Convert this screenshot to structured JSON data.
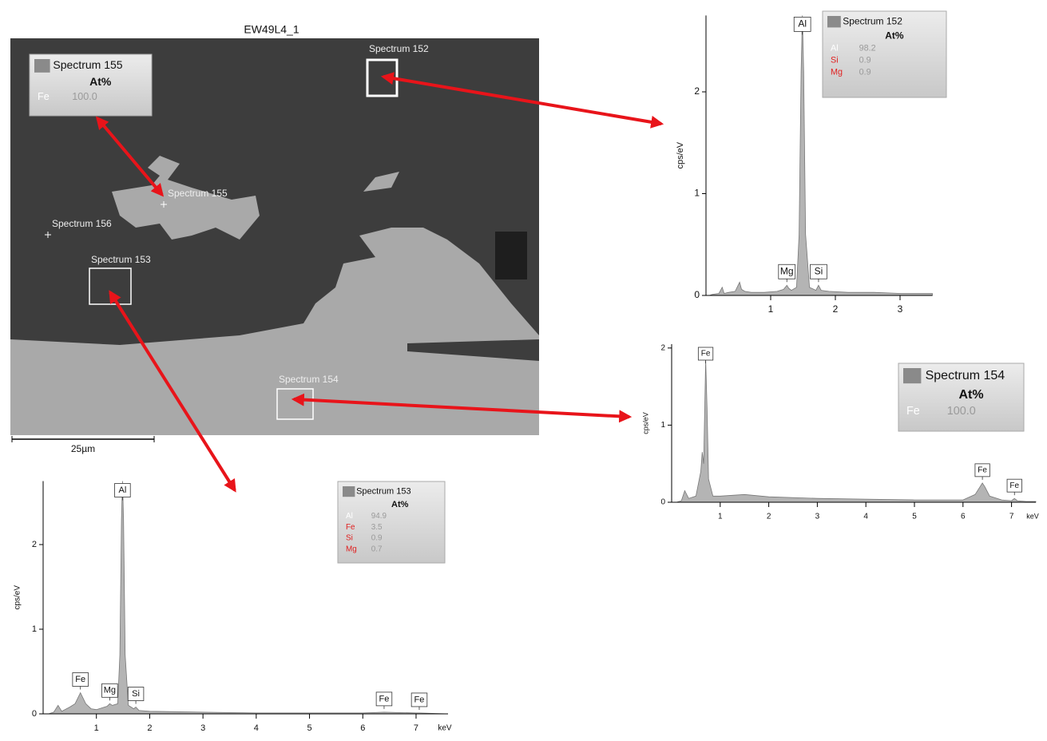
{
  "image": {
    "title": "EW49L4_1",
    "scale_bar": "25µm",
    "markers": [
      "Spectrum 152",
      "Spectrum 155",
      "Spectrum 156",
      "Spectrum 153",
      "Spectrum 154"
    ],
    "overlay": {
      "name": "Spectrum 155",
      "composition": {
        "header": "At%",
        "elements": [
          "Fe"
        ],
        "element_colors": [
          "#ffffff"
        ],
        "values": [
          100
        ],
        "value_labels": [
          "100.0"
        ]
      }
    }
  },
  "chart_data": [
    {
      "type": "area",
      "ylabel": "cps/eV",
      "x": [
        0.05,
        0.1,
        0.2,
        0.25,
        0.28,
        0.35,
        0.45,
        0.52,
        0.55,
        0.6,
        0.7,
        0.9,
        1.1,
        1.2,
        1.25,
        1.28,
        1.32,
        1.4,
        1.44,
        1.47,
        1.49,
        1.51,
        1.54,
        1.6,
        1.7,
        1.74,
        1.78,
        1.9,
        2.2,
        2.6,
        3.0,
        3.5
      ],
      "series": [
        {
          "name": "Spectrum 152",
          "color": "#b4b4b4",
          "values": [
            0,
            0.01,
            0.02,
            0.08,
            0.02,
            0.03,
            0.04,
            0.13,
            0.06,
            0.04,
            0.03,
            0.03,
            0.04,
            0.06,
            0.1,
            0.07,
            0.05,
            0.08,
            0.6,
            2.2,
            2.75,
            2.2,
            0.6,
            0.08,
            0.05,
            0.1,
            0.05,
            0.04,
            0.03,
            0.03,
            0.02,
            0.02
          ]
        }
      ],
      "xlim": [
        0,
        3.5
      ],
      "ylim": [
        0,
        2.75
      ],
      "xticks": [
        1,
        2,
        3
      ],
      "yticks": [
        0,
        1,
        2
      ],
      "peak_labels": [
        {
          "text": "Al",
          "x": 1.49
        },
        {
          "text": "Mg",
          "x": 1.25
        },
        {
          "text": "Si",
          "x": 1.74
        }
      ],
      "composition": {
        "header": "At%",
        "elements": [
          "Al",
          "Si",
          "Mg"
        ],
        "element_colors": [
          "#ffffff",
          "#e02020",
          "#e02020"
        ],
        "values": [
          98.2,
          0.9,
          0.9
        ]
      }
    },
    {
      "type": "area",
      "ylabel": "cps/eV",
      "xlabel": "keV",
      "x": [
        0.1,
        0.2,
        0.27,
        0.35,
        0.5,
        0.6,
        0.63,
        0.66,
        0.7,
        0.73,
        0.76,
        0.85,
        1.0,
        1.5,
        2.0,
        3.0,
        4.0,
        5.0,
        6.0,
        6.25,
        6.35,
        6.4,
        6.45,
        6.55,
        6.8,
        7.0,
        7.06,
        7.12,
        7.3,
        7.5
      ],
      "series": [
        {
          "name": "Spectrum 154",
          "color": "#b4b4b4",
          "values": [
            0,
            0.02,
            0.15,
            0.05,
            0.08,
            0.4,
            0.65,
            0.5,
            1.85,
            1.2,
            0.3,
            0.08,
            0.08,
            0.1,
            0.07,
            0.05,
            0.04,
            0.03,
            0.03,
            0.1,
            0.2,
            0.25,
            0.2,
            0.08,
            0.03,
            0.02,
            0.05,
            0.02,
            0.01,
            0.01
          ]
        }
      ],
      "xlim": [
        0,
        7.5
      ],
      "ylim": [
        0,
        2.05
      ],
      "xticks": [
        1,
        2,
        3,
        4,
        5,
        6,
        7
      ],
      "yticks": [
        0,
        1,
        2
      ],
      "peak_labels": [
        {
          "text": "Fe",
          "x": 0.7
        },
        {
          "text": "Fe",
          "x": 6.4
        },
        {
          "text": "Fe",
          "x": 7.06
        }
      ],
      "composition": {
        "header": "At%",
        "elements": [
          "Fe"
        ],
        "element_colors": [
          "#ffffff"
        ],
        "values": [
          100
        ],
        "value_labels": [
          "100.0"
        ]
      }
    },
    {
      "type": "area",
      "ylabel": "cps/eV",
      "xlabel": "keV",
      "x": [
        0.1,
        0.2,
        0.28,
        0.35,
        0.5,
        0.6,
        0.7,
        0.8,
        0.9,
        1.0,
        1.1,
        1.2,
        1.25,
        1.3,
        1.4,
        1.44,
        1.47,
        1.49,
        1.51,
        1.54,
        1.6,
        1.7,
        1.74,
        1.8,
        2.0,
        3.0,
        4.0,
        5.0,
        6.0,
        6.4,
        7.0,
        7.06,
        7.6
      ],
      "series": [
        {
          "name": "Spectrum 153",
          "color": "#b4b4b4",
          "values": [
            0,
            0.02,
            0.1,
            0.03,
            0.08,
            0.12,
            0.25,
            0.12,
            0.06,
            0.05,
            0.07,
            0.09,
            0.12,
            0.1,
            0.12,
            0.7,
            2.3,
            2.75,
            2.3,
            0.7,
            0.1,
            0.06,
            0.08,
            0.04,
            0.03,
            0.02,
            0.01,
            0.01,
            0.01,
            0.02,
            0.01,
            0.01,
            0
          ]
        }
      ],
      "xlim": [
        0,
        7.6
      ],
      "ylim": [
        0,
        2.75
      ],
      "xticks": [
        1,
        2,
        3,
        4,
        5,
        6,
        7
      ],
      "yticks": [
        0,
        1,
        2
      ],
      "peak_labels": [
        {
          "text": "Al",
          "x": 1.49
        },
        {
          "text": "Fe",
          "x": 0.7
        },
        {
          "text": "Mg",
          "x": 1.25
        },
        {
          "text": "Si",
          "x": 1.74
        },
        {
          "text": "Fe",
          "x": 6.4
        },
        {
          "text": "Fe",
          "x": 7.06
        }
      ],
      "composition": {
        "header": "At%",
        "elements": [
          "Al",
          "Fe",
          "Si",
          "Mg"
        ],
        "element_colors": [
          "#ffffff",
          "#e02020",
          "#e02020",
          "#e02020"
        ],
        "values": [
          94.9,
          3.5,
          0.9,
          0.7
        ]
      }
    }
  ]
}
